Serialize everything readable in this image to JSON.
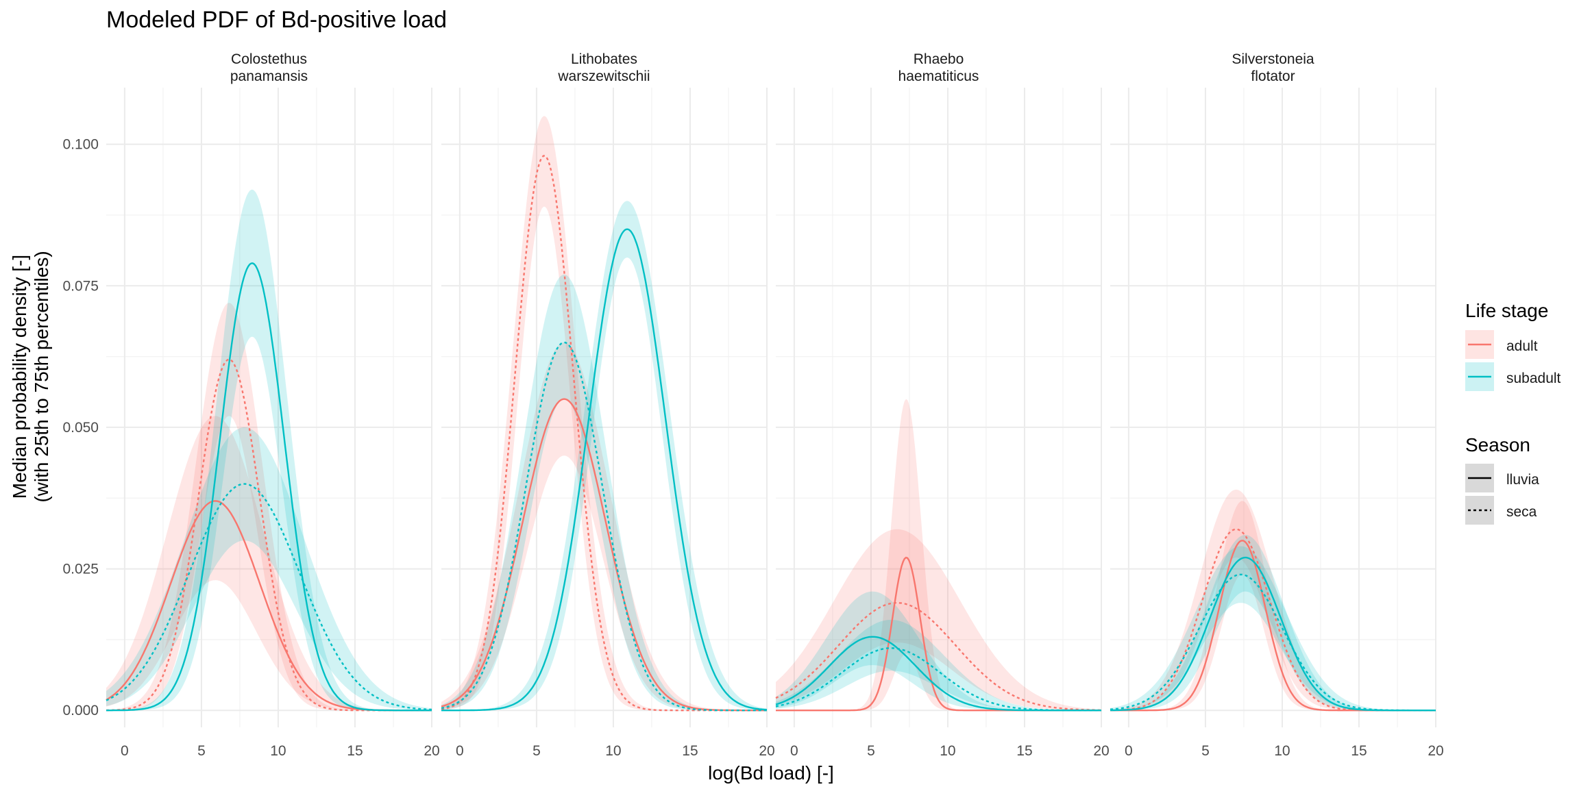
{
  "chart_data": {
    "type": "line",
    "title": "Modeled PDF of Bd-positive load",
    "xlabel": "log(Bd load) [-]",
    "ylabel_line1": "Median probability density [-]",
    "ylabel_line2": "(with 25th to 75th percentiles)",
    "xlim": [
      -1.2,
      20
    ],
    "ylim": [
      -0.003,
      0.11
    ],
    "x_ticks": [
      0,
      5,
      10,
      15,
      20
    ],
    "x_tick_labels": [
      "0",
      "5",
      "10",
      "15",
      "20"
    ],
    "y_ticks": [
      0.0,
      0.025,
      0.05,
      0.075,
      0.1
    ],
    "y_tick_labels": [
      "0.000",
      "0.025",
      "0.050",
      "0.075",
      "0.100"
    ],
    "grid": true,
    "legend_position": "right",
    "colors": {
      "adult": "#F8766D",
      "subadult": "#00BFC4"
    },
    "legend": {
      "life_stage_title": "Life stage",
      "life_stage_items": [
        {
          "key": "adult",
          "label": "adult"
        },
        {
          "key": "subadult",
          "label": "subadult"
        }
      ],
      "season_title": "Season",
      "season_items": [
        {
          "key": "lluvia",
          "label": "lluvia",
          "dash": "solid"
        },
        {
          "key": "seca",
          "label": "seca",
          "dash": "dotted"
        }
      ]
    },
    "panels": [
      {
        "strip_line1": "Colostethus",
        "strip_line2": "panamansis",
        "series": [
          {
            "name": "adult lluvia",
            "stage": "adult",
            "season": "lluvia",
            "mean": 5.9,
            "sd": 2.9,
            "peak": 0.037,
            "ribbon_low": 0.023,
            "ribbon_high": 0.052
          },
          {
            "name": "adult seca",
            "stage": "adult",
            "season": "seca",
            "mean": 6.8,
            "sd": 2.0,
            "peak": 0.062,
            "ribbon_low": 0.052,
            "ribbon_high": 0.072
          },
          {
            "name": "subadult lluvia",
            "stage": "subadult",
            "season": "lluvia",
            "mean": 8.3,
            "sd": 2.1,
            "peak": 0.079,
            "ribbon_low": 0.066,
            "ribbon_high": 0.092
          },
          {
            "name": "subadult seca",
            "stage": "subadult",
            "season": "seca",
            "mean": 7.8,
            "sd": 3.6,
            "peak": 0.04,
            "ribbon_low": 0.03,
            "ribbon_high": 0.05
          }
        ]
      },
      {
        "strip_line1": "Lithobates",
        "strip_line2": "warszewitschii",
        "series": [
          {
            "name": "adult lluvia",
            "stage": "adult",
            "season": "lluvia",
            "mean": 6.8,
            "sd": 2.7,
            "peak": 0.055,
            "ribbon_low": 0.045,
            "ribbon_high": 0.065
          },
          {
            "name": "adult seca",
            "stage": "adult",
            "season": "seca",
            "mean": 5.5,
            "sd": 1.9,
            "peak": 0.098,
            "ribbon_low": 0.089,
            "ribbon_high": 0.105
          },
          {
            "name": "subadult lluvia",
            "stage": "subadult",
            "season": "lluvia",
            "mean": 10.9,
            "sd": 2.5,
            "peak": 0.085,
            "ribbon_low": 0.08,
            "ribbon_high": 0.09
          },
          {
            "name": "subadult seca",
            "stage": "subadult",
            "season": "seca",
            "mean": 6.8,
            "sd": 2.5,
            "peak": 0.065,
            "ribbon_low": 0.055,
            "ribbon_high": 0.077
          }
        ]
      },
      {
        "strip_line1": "Rhaebo",
        "strip_line2": "haematiticus",
        "series": [
          {
            "name": "adult lluvia",
            "stage": "adult",
            "season": "lluvia",
            "mean": 7.3,
            "sd": 0.9,
            "peak": 0.027,
            "ribbon_low": 0.01,
            "ribbon_high": 0.055
          },
          {
            "name": "adult seca",
            "stage": "adult",
            "season": "seca",
            "mean": 6.7,
            "sd": 3.8,
            "peak": 0.019,
            "ribbon_low": 0.012,
            "ribbon_high": 0.032
          },
          {
            "name": "subadult lluvia",
            "stage": "subadult",
            "season": "lluvia",
            "mean": 5.1,
            "sd": 2.8,
            "peak": 0.013,
            "ribbon_low": 0.008,
            "ribbon_high": 0.021
          },
          {
            "name": "subadult seca",
            "stage": "subadult",
            "season": "seca",
            "mean": 6.3,
            "sd": 3.2,
            "peak": 0.011,
            "ribbon_low": 0.007,
            "ribbon_high": 0.016
          }
        ]
      },
      {
        "strip_line1": "Silverstoneia",
        "strip_line2": "flotator",
        "series": [
          {
            "name": "adult lluvia",
            "stage": "adult",
            "season": "lluvia",
            "mean": 7.4,
            "sd": 1.5,
            "peak": 0.03,
            "ribbon_low": 0.024,
            "ribbon_high": 0.037
          },
          {
            "name": "adult seca",
            "stage": "adult",
            "season": "seca",
            "mean": 7.0,
            "sd": 2.2,
            "peak": 0.032,
            "ribbon_low": 0.027,
            "ribbon_high": 0.039
          },
          {
            "name": "subadult lluvia",
            "stage": "subadult",
            "season": "lluvia",
            "mean": 7.6,
            "sd": 2.3,
            "peak": 0.027,
            "ribbon_low": 0.021,
            "ribbon_high": 0.031
          },
          {
            "name": "subadult seca",
            "stage": "subadult",
            "season": "seca",
            "mean": 7.3,
            "sd": 2.7,
            "peak": 0.024,
            "ribbon_low": 0.019,
            "ribbon_high": 0.029
          }
        ]
      }
    ]
  }
}
